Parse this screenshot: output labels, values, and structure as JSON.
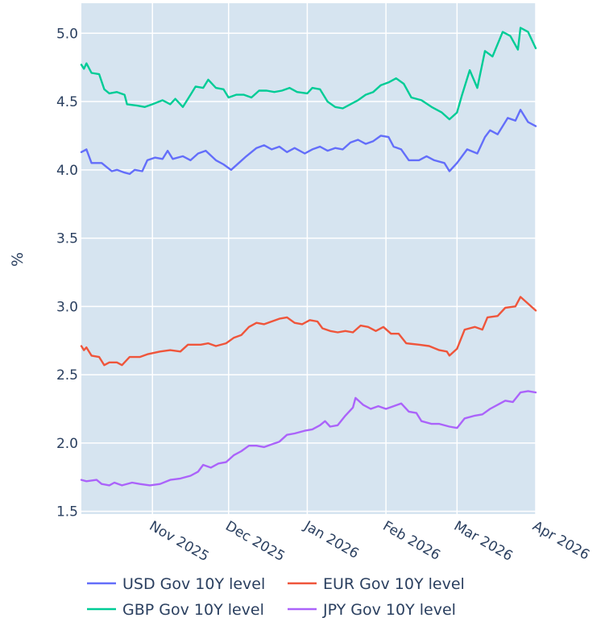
{
  "chart_data": {
    "type": "line",
    "title": "",
    "xlabel": "",
    "ylabel": "%",
    "ylim": [
      1.48,
      5.22
    ],
    "xlim": [
      "2025-10-04",
      "2026-04-01"
    ],
    "grid": true,
    "legend_placement": "bottom",
    "y_ticks": [
      1.5,
      2.0,
      2.5,
      3.0,
      3.5,
      4.0,
      4.5,
      5.0
    ],
    "y_tick_labels": [
      "1.5",
      "2.0",
      "2.5",
      "3.0",
      "3.5",
      "4.0",
      "4.5",
      "5.0"
    ],
    "x_ticks": [
      "2025-11-01",
      "2025-12-01",
      "2026-01-01",
      "2026-02-01",
      "2026-03-01",
      "2026-04-01"
    ],
    "x_tick_labels": [
      "Nov 2025",
      "Dec 2025",
      "Jan 2026",
      "Feb 2026",
      "Mar 2026",
      "Apr 2026"
    ],
    "series": [
      {
        "name": "USD Gov 10Y level",
        "color": "#636efa",
        "points": [
          [
            "2025-10-04",
            4.13
          ],
          [
            "2025-10-06",
            4.15
          ],
          [
            "2025-10-08",
            4.05
          ],
          [
            "2025-10-12",
            4.05
          ],
          [
            "2025-10-14",
            4.02
          ],
          [
            "2025-10-16",
            3.99
          ],
          [
            "2025-10-18",
            4.0
          ],
          [
            "2025-10-21",
            3.98
          ],
          [
            "2025-10-23",
            3.97
          ],
          [
            "2025-10-25",
            4.0
          ],
          [
            "2025-10-28",
            3.99
          ],
          [
            "2025-10-30",
            4.07
          ],
          [
            "2025-11-02",
            4.09
          ],
          [
            "2025-11-05",
            4.08
          ],
          [
            "2025-11-07",
            4.14
          ],
          [
            "2025-11-09",
            4.08
          ],
          [
            "2025-11-13",
            4.1
          ],
          [
            "2025-11-16",
            4.07
          ],
          [
            "2025-11-19",
            4.12
          ],
          [
            "2025-11-22",
            4.14
          ],
          [
            "2025-11-26",
            4.07
          ],
          [
            "2025-11-29",
            4.04
          ],
          [
            "2025-12-02",
            4.0
          ],
          [
            "2025-12-05",
            4.05
          ],
          [
            "2025-12-08",
            4.1
          ],
          [
            "2025-12-12",
            4.16
          ],
          [
            "2025-12-15",
            4.18
          ],
          [
            "2025-12-18",
            4.15
          ],
          [
            "2025-12-21",
            4.17
          ],
          [
            "2025-12-24",
            4.13
          ],
          [
            "2025-12-27",
            4.16
          ],
          [
            "2025-12-31",
            4.12
          ],
          [
            "2026-01-03",
            4.15
          ],
          [
            "2026-01-06",
            4.17
          ],
          [
            "2026-01-09",
            4.14
          ],
          [
            "2026-01-12",
            4.16
          ],
          [
            "2026-01-15",
            4.15
          ],
          [
            "2026-01-18",
            4.2
          ],
          [
            "2026-01-21",
            4.22
          ],
          [
            "2026-01-24",
            4.19
          ],
          [
            "2026-01-27",
            4.21
          ],
          [
            "2026-01-30",
            4.25
          ],
          [
            "2026-02-02",
            4.24
          ],
          [
            "2026-02-04",
            4.17
          ],
          [
            "2026-02-07",
            4.15
          ],
          [
            "2026-02-10",
            4.07
          ],
          [
            "2026-02-14",
            4.07
          ],
          [
            "2026-02-17",
            4.1
          ],
          [
            "2026-02-20",
            4.07
          ],
          [
            "2026-02-24",
            4.05
          ],
          [
            "2026-02-26",
            3.99
          ],
          [
            "2026-03-01",
            4.05
          ],
          [
            "2026-03-05",
            4.15
          ],
          [
            "2026-03-09",
            4.12
          ],
          [
            "2026-03-12",
            4.24
          ],
          [
            "2026-03-14",
            4.29
          ],
          [
            "2026-03-17",
            4.26
          ],
          [
            "2026-03-21",
            4.38
          ],
          [
            "2026-03-24",
            4.36
          ],
          [
            "2026-03-26",
            4.44
          ],
          [
            "2026-03-29",
            4.35
          ],
          [
            "2026-04-01",
            4.32
          ]
        ]
      },
      {
        "name": "EUR Gov 10Y level",
        "color": "#ef553b",
        "points": [
          [
            "2025-10-04",
            2.71
          ],
          [
            "2025-10-05",
            2.68
          ],
          [
            "2025-10-06",
            2.7
          ],
          [
            "2025-10-08",
            2.64
          ],
          [
            "2025-10-11",
            2.63
          ],
          [
            "2025-10-13",
            2.57
          ],
          [
            "2025-10-15",
            2.59
          ],
          [
            "2025-10-18",
            2.59
          ],
          [
            "2025-10-20",
            2.57
          ],
          [
            "2025-10-23",
            2.63
          ],
          [
            "2025-10-27",
            2.63
          ],
          [
            "2025-10-30",
            2.65
          ],
          [
            "2025-11-04",
            2.67
          ],
          [
            "2025-11-08",
            2.68
          ],
          [
            "2025-11-12",
            2.67
          ],
          [
            "2025-11-15",
            2.72
          ],
          [
            "2025-11-20",
            2.72
          ],
          [
            "2025-11-23",
            2.73
          ],
          [
            "2025-11-26",
            2.71
          ],
          [
            "2025-11-30",
            2.73
          ],
          [
            "2025-12-03",
            2.77
          ],
          [
            "2025-12-06",
            2.79
          ],
          [
            "2025-12-09",
            2.85
          ],
          [
            "2025-12-12",
            2.88
          ],
          [
            "2025-12-15",
            2.87
          ],
          [
            "2025-12-18",
            2.89
          ],
          [
            "2025-12-21",
            2.91
          ],
          [
            "2025-12-24",
            2.92
          ],
          [
            "2025-12-27",
            2.88
          ],
          [
            "2025-12-30",
            2.87
          ],
          [
            "2026-01-02",
            2.9
          ],
          [
            "2026-01-05",
            2.89
          ],
          [
            "2026-01-07",
            2.84
          ],
          [
            "2026-01-10",
            2.82
          ],
          [
            "2026-01-13",
            2.81
          ],
          [
            "2026-01-16",
            2.82
          ],
          [
            "2026-01-19",
            2.81
          ],
          [
            "2026-01-22",
            2.86
          ],
          [
            "2026-01-25",
            2.85
          ],
          [
            "2026-01-28",
            2.82
          ],
          [
            "2026-01-31",
            2.85
          ],
          [
            "2026-02-03",
            2.8
          ],
          [
            "2026-02-06",
            2.8
          ],
          [
            "2026-02-09",
            2.73
          ],
          [
            "2026-02-14",
            2.72
          ],
          [
            "2026-02-18",
            2.71
          ],
          [
            "2026-02-22",
            2.68
          ],
          [
            "2026-02-25",
            2.67
          ],
          [
            "2026-02-26",
            2.64
          ],
          [
            "2026-03-01",
            2.69
          ],
          [
            "2026-03-04",
            2.83
          ],
          [
            "2026-03-08",
            2.85
          ],
          [
            "2026-03-11",
            2.83
          ],
          [
            "2026-03-13",
            2.92
          ],
          [
            "2026-03-17",
            2.93
          ],
          [
            "2026-03-20",
            2.99
          ],
          [
            "2026-03-24",
            3.0
          ],
          [
            "2026-03-26",
            3.07
          ],
          [
            "2026-03-29",
            3.02
          ],
          [
            "2026-04-01",
            2.97
          ]
        ]
      },
      {
        "name": "GBP Gov 10Y level",
        "color": "#00cc96",
        "points": [
          [
            "2025-10-04",
            4.77
          ],
          [
            "2025-10-05",
            4.74
          ],
          [
            "2025-10-06",
            4.78
          ],
          [
            "2025-10-08",
            4.71
          ],
          [
            "2025-10-11",
            4.7
          ],
          [
            "2025-10-13",
            4.59
          ],
          [
            "2025-10-15",
            4.56
          ],
          [
            "2025-10-18",
            4.57
          ],
          [
            "2025-10-21",
            4.55
          ],
          [
            "2025-10-22",
            4.48
          ],
          [
            "2025-10-26",
            4.47
          ],
          [
            "2025-10-29",
            4.46
          ],
          [
            "2025-11-01",
            4.48
          ],
          [
            "2025-11-05",
            4.51
          ],
          [
            "2025-11-08",
            4.48
          ],
          [
            "2025-11-10",
            4.52
          ],
          [
            "2025-11-13",
            4.46
          ],
          [
            "2025-11-16",
            4.55
          ],
          [
            "2025-11-18",
            4.61
          ],
          [
            "2025-11-21",
            4.6
          ],
          [
            "2025-11-23",
            4.66
          ],
          [
            "2025-11-26",
            4.6
          ],
          [
            "2025-11-29",
            4.59
          ],
          [
            "2025-12-01",
            4.53
          ],
          [
            "2025-12-04",
            4.55
          ],
          [
            "2025-12-07",
            4.55
          ],
          [
            "2025-12-10",
            4.53
          ],
          [
            "2025-12-13",
            4.58
          ],
          [
            "2025-12-16",
            4.58
          ],
          [
            "2025-12-19",
            4.57
          ],
          [
            "2025-12-22",
            4.58
          ],
          [
            "2025-12-25",
            4.6
          ],
          [
            "2025-12-28",
            4.57
          ],
          [
            "2026-01-01",
            4.56
          ],
          [
            "2026-01-03",
            4.6
          ],
          [
            "2026-01-06",
            4.59
          ],
          [
            "2026-01-09",
            4.5
          ],
          [
            "2026-01-12",
            4.46
          ],
          [
            "2026-01-15",
            4.45
          ],
          [
            "2026-01-18",
            4.48
          ],
          [
            "2026-01-21",
            4.51
          ],
          [
            "2026-01-24",
            4.55
          ],
          [
            "2026-01-27",
            4.57
          ],
          [
            "2026-01-30",
            4.62
          ],
          [
            "2026-02-02",
            4.64
          ],
          [
            "2026-02-05",
            4.67
          ],
          [
            "2026-02-08",
            4.63
          ],
          [
            "2026-02-11",
            4.53
          ],
          [
            "2026-02-15",
            4.51
          ],
          [
            "2026-02-19",
            4.46
          ],
          [
            "2026-02-23",
            4.42
          ],
          [
            "2026-02-26",
            4.37
          ],
          [
            "2026-03-01",
            4.42
          ],
          [
            "2026-03-03",
            4.55
          ],
          [
            "2026-03-06",
            4.73
          ],
          [
            "2026-03-09",
            4.6
          ],
          [
            "2026-03-12",
            4.87
          ],
          [
            "2026-03-15",
            4.83
          ],
          [
            "2026-03-19",
            5.01
          ],
          [
            "2026-03-22",
            4.98
          ],
          [
            "2026-03-25",
            4.88
          ],
          [
            "2026-03-26",
            5.04
          ],
          [
            "2026-03-29",
            5.01
          ],
          [
            "2026-04-01",
            4.89
          ]
        ]
      },
      {
        "name": "JPY Gov 10Y level",
        "color": "#ab63fa",
        "points": [
          [
            "2025-10-04",
            1.73
          ],
          [
            "2025-10-06",
            1.72
          ],
          [
            "2025-10-10",
            1.73
          ],
          [
            "2025-10-12",
            1.7
          ],
          [
            "2025-10-15",
            1.69
          ],
          [
            "2025-10-17",
            1.71
          ],
          [
            "2025-10-20",
            1.69
          ],
          [
            "2025-10-24",
            1.71
          ],
          [
            "2025-10-27",
            1.7
          ],
          [
            "2025-10-31",
            1.69
          ],
          [
            "2025-11-04",
            1.7
          ],
          [
            "2025-11-08",
            1.73
          ],
          [
            "2025-11-12",
            1.74
          ],
          [
            "2025-11-16",
            1.76
          ],
          [
            "2025-11-19",
            1.79
          ],
          [
            "2025-11-21",
            1.84
          ],
          [
            "2025-11-24",
            1.82
          ],
          [
            "2025-11-27",
            1.85
          ],
          [
            "2025-11-30",
            1.86
          ],
          [
            "2025-12-03",
            1.91
          ],
          [
            "2025-12-06",
            1.94
          ],
          [
            "2025-12-09",
            1.98
          ],
          [
            "2025-12-12",
            1.98
          ],
          [
            "2025-12-15",
            1.97
          ],
          [
            "2025-12-18",
            1.99
          ],
          [
            "2025-12-21",
            2.01
          ],
          [
            "2025-12-24",
            2.06
          ],
          [
            "2025-12-27",
            2.07
          ],
          [
            "2025-12-31",
            2.09
          ],
          [
            "2026-01-03",
            2.1
          ],
          [
            "2026-01-06",
            2.13
          ],
          [
            "2026-01-08",
            2.16
          ],
          [
            "2026-01-10",
            2.12
          ],
          [
            "2026-01-13",
            2.13
          ],
          [
            "2026-01-16",
            2.2
          ],
          [
            "2026-01-19",
            2.26
          ],
          [
            "2026-01-20",
            2.33
          ],
          [
            "2026-01-23",
            2.28
          ],
          [
            "2026-01-26",
            2.25
          ],
          [
            "2026-01-29",
            2.27
          ],
          [
            "2026-02-01",
            2.25
          ],
          [
            "2026-02-04",
            2.27
          ],
          [
            "2026-02-07",
            2.29
          ],
          [
            "2026-02-10",
            2.23
          ],
          [
            "2026-02-13",
            2.22
          ],
          [
            "2026-02-15",
            2.16
          ],
          [
            "2026-02-19",
            2.14
          ],
          [
            "2026-02-22",
            2.14
          ],
          [
            "2026-02-26",
            2.12
          ],
          [
            "2026-03-01",
            2.11
          ],
          [
            "2026-03-04",
            2.18
          ],
          [
            "2026-03-08",
            2.2
          ],
          [
            "2026-03-11",
            2.21
          ],
          [
            "2026-03-14",
            2.25
          ],
          [
            "2026-03-17",
            2.28
          ],
          [
            "2026-03-20",
            2.31
          ],
          [
            "2026-03-23",
            2.3
          ],
          [
            "2026-03-26",
            2.37
          ],
          [
            "2026-03-29",
            2.38
          ],
          [
            "2026-04-01",
            2.37
          ]
        ]
      }
    ]
  }
}
